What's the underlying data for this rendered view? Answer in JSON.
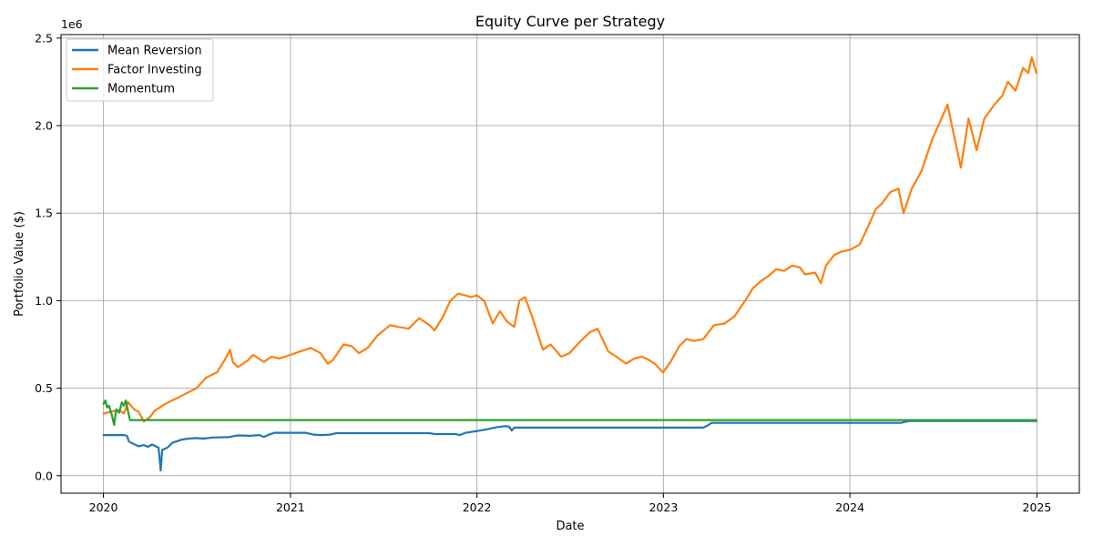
{
  "chart_data": {
    "type": "line",
    "title": "Equity Curve per Strategy",
    "xlabel": "Date",
    "ylabel": "Portfolio Value ($)",
    "y_offset_label": "1e6",
    "xlim": [
      "2019-10-10",
      "2025-03-25"
    ],
    "ylim": [
      -100000,
      2520000
    ],
    "grid": true,
    "legend_position": "top-left",
    "x_ticks": [
      {
        "value": "2020-01-01",
        "label": "2020"
      },
      {
        "value": "2021-01-01",
        "label": "2021"
      },
      {
        "value": "2022-01-01",
        "label": "2022"
      },
      {
        "value": "2023-01-01",
        "label": "2023"
      },
      {
        "value": "2024-01-01",
        "label": "2024"
      },
      {
        "value": "2025-01-01",
        "label": "2025"
      }
    ],
    "y_ticks": [
      {
        "value": 0,
        "label": "0.0"
      },
      {
        "value": 500000,
        "label": "0.5"
      },
      {
        "value": 1000000,
        "label": "1.0"
      },
      {
        "value": 1500000,
        "label": "1.5"
      },
      {
        "value": 2000000,
        "label": "2.0"
      },
      {
        "value": 2500000,
        "label": "2.5"
      }
    ],
    "series": [
      {
        "name": "Mean Reversion",
        "color": "#1f77b4",
        "points": [
          [
            "2020-01-01",
            232000
          ],
          [
            "2020-02-10",
            232000
          ],
          [
            "2020-02-16",
            228000
          ],
          [
            "2020-02-20",
            195000
          ],
          [
            "2020-03-01",
            180000
          ],
          [
            "2020-03-10",
            168000
          ],
          [
            "2020-03-20",
            175000
          ],
          [
            "2020-03-28",
            165000
          ],
          [
            "2020-04-05",
            178000
          ],
          [
            "2020-04-12",
            168000
          ],
          [
            "2020-04-18",
            160000
          ],
          [
            "2020-04-22",
            30000
          ],
          [
            "2020-04-25",
            148000
          ],
          [
            "2020-05-05",
            160000
          ],
          [
            "2020-05-15",
            188000
          ],
          [
            "2020-06-01",
            205000
          ],
          [
            "2020-06-15",
            212000
          ],
          [
            "2020-07-01",
            215000
          ],
          [
            "2020-07-15",
            212000
          ],
          [
            "2020-08-01",
            218000
          ],
          [
            "2020-09-01",
            220000
          ],
          [
            "2020-09-20",
            230000
          ],
          [
            "2020-10-15",
            228000
          ],
          [
            "2020-11-01",
            232000
          ],
          [
            "2020-11-10",
            222000
          ],
          [
            "2020-11-20",
            235000
          ],
          [
            "2020-12-01",
            245000
          ],
          [
            "2020-12-31",
            245000
          ],
          [
            "2021-01-31",
            245000
          ],
          [
            "2021-02-15",
            235000
          ],
          [
            "2021-03-01",
            232000
          ],
          [
            "2021-03-20",
            235000
          ],
          [
            "2021-04-01",
            243000
          ],
          [
            "2021-09-30",
            243000
          ],
          [
            "2021-10-10",
            238000
          ],
          [
            "2021-11-20",
            238000
          ],
          [
            "2021-11-28",
            232000
          ],
          [
            "2021-12-10",
            245000
          ],
          [
            "2022-01-01",
            255000
          ],
          [
            "2022-01-20",
            265000
          ],
          [
            "2022-02-10",
            278000
          ],
          [
            "2022-02-25",
            283000
          ],
          [
            "2022-03-05",
            280000
          ],
          [
            "2022-03-10",
            258000
          ],
          [
            "2022-03-15",
            275000
          ],
          [
            "2022-12-31",
            275000
          ],
          [
            "2023-03-20",
            275000
          ],
          [
            "2023-03-28",
            285000
          ],
          [
            "2023-04-05",
            302000
          ],
          [
            "2024-04-10",
            302000
          ],
          [
            "2024-04-25",
            312000
          ],
          [
            "2024-12-31",
            312000
          ]
        ]
      },
      {
        "name": "Factor Investing",
        "color": "#ff7f0e",
        "points": [
          [
            "2020-01-01",
            355000
          ],
          [
            "2020-01-15",
            365000
          ],
          [
            "2020-02-01",
            375000
          ],
          [
            "2020-02-10",
            355000
          ],
          [
            "2020-02-18",
            420000
          ],
          [
            "2020-03-01",
            380000
          ],
          [
            "2020-03-10",
            365000
          ],
          [
            "2020-03-20",
            310000
          ],
          [
            "2020-04-01",
            335000
          ],
          [
            "2020-04-10",
            370000
          ],
          [
            "2020-05-01",
            410000
          ],
          [
            "2020-06-01",
            455000
          ],
          [
            "2020-07-01",
            500000
          ],
          [
            "2020-07-20",
            560000
          ],
          [
            "2020-08-10",
            590000
          ],
          [
            "2020-08-25",
            660000
          ],
          [
            "2020-09-05",
            720000
          ],
          [
            "2020-09-10",
            650000
          ],
          [
            "2020-09-20",
            620000
          ],
          [
            "2020-10-10",
            660000
          ],
          [
            "2020-10-20",
            690000
          ],
          [
            "2020-11-10",
            650000
          ],
          [
            "2020-11-25",
            680000
          ],
          [
            "2020-12-10",
            670000
          ],
          [
            "2021-01-01",
            690000
          ],
          [
            "2021-01-20",
            710000
          ],
          [
            "2021-02-10",
            730000
          ],
          [
            "2021-03-01",
            700000
          ],
          [
            "2021-03-15",
            640000
          ],
          [
            "2021-03-25",
            660000
          ],
          [
            "2021-04-15",
            750000
          ],
          [
            "2021-05-01",
            740000
          ],
          [
            "2021-05-15",
            700000
          ],
          [
            "2021-06-01",
            730000
          ],
          [
            "2021-06-20",
            800000
          ],
          [
            "2021-07-15",
            860000
          ],
          [
            "2021-08-01",
            850000
          ],
          [
            "2021-08-20",
            840000
          ],
          [
            "2021-09-10",
            900000
          ],
          [
            "2021-09-30",
            860000
          ],
          [
            "2021-10-10",
            830000
          ],
          [
            "2021-10-25",
            900000
          ],
          [
            "2021-11-10",
            1000000
          ],
          [
            "2021-11-25",
            1040000
          ],
          [
            "2021-12-10",
            1030000
          ],
          [
            "2021-12-20",
            1020000
          ],
          [
            "2022-01-01",
            1030000
          ],
          [
            "2022-01-15",
            1000000
          ],
          [
            "2022-02-01",
            870000
          ],
          [
            "2022-02-15",
            940000
          ],
          [
            "2022-03-01",
            880000
          ],
          [
            "2022-03-15",
            850000
          ],
          [
            "2022-03-25",
            1000000
          ],
          [
            "2022-04-05",
            1020000
          ],
          [
            "2022-04-20",
            900000
          ],
          [
            "2022-05-10",
            720000
          ],
          [
            "2022-05-25",
            750000
          ],
          [
            "2022-06-15",
            680000
          ],
          [
            "2022-07-01",
            700000
          ],
          [
            "2022-07-20",
            760000
          ],
          [
            "2022-08-10",
            820000
          ],
          [
            "2022-08-25",
            840000
          ],
          [
            "2022-09-15",
            710000
          ],
          [
            "2022-10-01",
            680000
          ],
          [
            "2022-10-20",
            640000
          ],
          [
            "2022-11-05",
            670000
          ],
          [
            "2022-11-20",
            680000
          ],
          [
            "2022-12-01",
            665000
          ],
          [
            "2022-12-15",
            640000
          ],
          [
            "2022-12-31",
            590000
          ],
          [
            "2023-01-15",
            650000
          ],
          [
            "2023-02-01",
            740000
          ],
          [
            "2023-02-15",
            780000
          ],
          [
            "2023-03-01",
            770000
          ],
          [
            "2023-03-20",
            780000
          ],
          [
            "2023-04-10",
            860000
          ],
          [
            "2023-05-01",
            870000
          ],
          [
            "2023-05-20",
            910000
          ],
          [
            "2023-06-10",
            1000000
          ],
          [
            "2023-06-25",
            1070000
          ],
          [
            "2023-07-10",
            1110000
          ],
          [
            "2023-07-25",
            1140000
          ],
          [
            "2023-08-10",
            1180000
          ],
          [
            "2023-08-25",
            1170000
          ],
          [
            "2023-09-10",
            1200000
          ],
          [
            "2023-09-25",
            1190000
          ],
          [
            "2023-10-05",
            1150000
          ],
          [
            "2023-10-25",
            1160000
          ],
          [
            "2023-11-05",
            1100000
          ],
          [
            "2023-11-15",
            1200000
          ],
          [
            "2023-12-01",
            1260000
          ],
          [
            "2023-12-15",
            1280000
          ],
          [
            "2024-01-01",
            1290000
          ],
          [
            "2024-01-20",
            1320000
          ],
          [
            "2024-02-05",
            1420000
          ],
          [
            "2024-02-20",
            1520000
          ],
          [
            "2024-03-05",
            1560000
          ],
          [
            "2024-03-20",
            1620000
          ],
          [
            "2024-04-05",
            1640000
          ],
          [
            "2024-04-15",
            1500000
          ],
          [
            "2024-05-01",
            1640000
          ],
          [
            "2024-05-20",
            1740000
          ],
          [
            "2024-06-10",
            1920000
          ],
          [
            "2024-06-25",
            2020000
          ],
          [
            "2024-07-10",
            2120000
          ],
          [
            "2024-07-20",
            1980000
          ],
          [
            "2024-08-05",
            1760000
          ],
          [
            "2024-08-20",
            2040000
          ],
          [
            "2024-09-05",
            1860000
          ],
          [
            "2024-09-20",
            2040000
          ],
          [
            "2024-10-10",
            2120000
          ],
          [
            "2024-10-25",
            2170000
          ],
          [
            "2024-11-05",
            2250000
          ],
          [
            "2024-11-20",
            2200000
          ],
          [
            "2024-12-05",
            2330000
          ],
          [
            "2024-12-15",
            2300000
          ],
          [
            "2024-12-22",
            2390000
          ],
          [
            "2024-12-31",
            2300000
          ]
        ]
      },
      {
        "name": "Momentum",
        "color": "#2ca02c",
        "points": [
          [
            "2020-01-01",
            410000
          ],
          [
            "2020-01-05",
            430000
          ],
          [
            "2020-01-08",
            390000
          ],
          [
            "2020-01-12",
            400000
          ],
          [
            "2020-01-18",
            340000
          ],
          [
            "2020-01-22",
            290000
          ],
          [
            "2020-01-26",
            380000
          ],
          [
            "2020-02-01",
            360000
          ],
          [
            "2020-02-06",
            420000
          ],
          [
            "2020-02-10",
            400000
          ],
          [
            "2020-02-14",
            430000
          ],
          [
            "2020-02-18",
            370000
          ],
          [
            "2020-02-22",
            318000
          ],
          [
            "2024-12-31",
            318000
          ]
        ]
      }
    ]
  }
}
